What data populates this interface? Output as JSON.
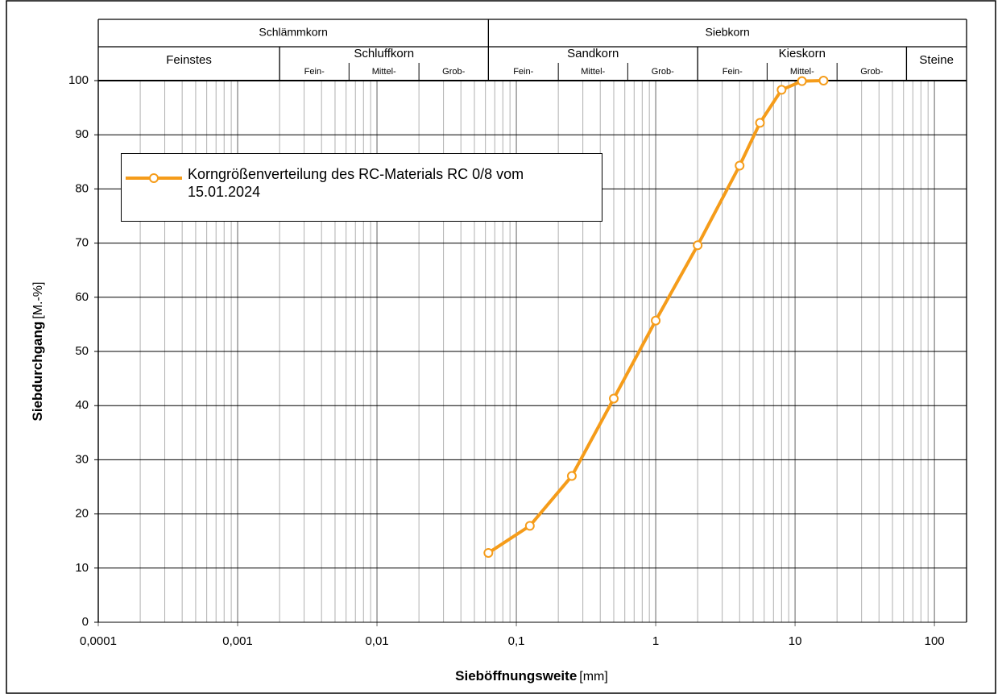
{
  "chart_data": {
    "type": "line",
    "xlabel": "Sieböffnungsweite",
    "xlabel_unit": "[mm]",
    "ylabel": "Siebdurchgang",
    "ylabel_unit": "[M.-%]",
    "log_x": true,
    "grid": true,
    "legend": "upper left",
    "xlim": [
      0.0001,
      170
    ],
    "ylim": [
      0,
      100
    ],
    "xticks": [
      {
        "value": 0.0001,
        "label": "0,0001"
      },
      {
        "value": 0.001,
        "label": "0,001"
      },
      {
        "value": 0.01,
        "label": "0,01"
      },
      {
        "value": 0.1,
        "label": "0,1"
      },
      1,
      10,
      100
    ],
    "minor_xticks": [
      0.0002,
      0.0003,
      0.0004,
      0.0005,
      0.0006,
      0.0007,
      0.0008,
      0.0009,
      0.002,
      0.003,
      0.004,
      0.005,
      0.006,
      0.007,
      0.008,
      0.009,
      0.02,
      0.03,
      0.04,
      0.05,
      0.06,
      0.07,
      0.08,
      0.09,
      0.2,
      0.3,
      0.4,
      0.5,
      0.6,
      0.7,
      0.8,
      0.9,
      2,
      3,
      4,
      5,
      6,
      7,
      8,
      9,
      20,
      30,
      40,
      50,
      60,
      70,
      80,
      90
    ],
    "yticks": [
      0,
      10,
      20,
      30,
      40,
      50,
      60,
      70,
      80,
      90,
      100
    ],
    "header": [
      {
        "label": "Schlämmkorn",
        "range": [
          0.0001,
          0.063
        ]
      },
      {
        "label": "Siebkorn",
        "range": [
          0.063,
          170
        ]
      }
    ],
    "fractions": [
      {
        "label": "Feinstes",
        "range": [
          0.0001,
          0.002
        ]
      },
      {
        "label": "Schluffkorn",
        "range": [
          0.002,
          0.063
        ],
        "parts": [
          {
            "label": "Fein-",
            "range": [
              0.002,
              0.0063
            ]
          },
          {
            "label": "Mittel-",
            "range": [
              0.0063,
              0.02
            ]
          },
          {
            "label": "Grob-",
            "range": [
              0.02,
              0.063
            ]
          }
        ]
      },
      {
        "label": "Sandkorn",
        "range": [
          0.063,
          2
        ],
        "parts": [
          {
            "label": "Fein-",
            "range": [
              0.063,
              0.2
            ]
          },
          {
            "label": "Mittel-",
            "range": [
              0.2,
              0.63
            ]
          },
          {
            "label": "Grob-",
            "range": [
              0.63,
              2
            ]
          }
        ]
      },
      {
        "label": "Kieskorn",
        "range": [
          2,
          63
        ],
        "parts": [
          {
            "label": "Fein-",
            "range": [
              2,
              6.3
            ]
          },
          {
            "label": "Mittel-",
            "range": [
              6.3,
              20
            ]
          },
          {
            "label": "Grob-",
            "range": [
              20,
              63
            ]
          }
        ]
      },
      {
        "label": "Steine",
        "range": [
          63,
          170
        ]
      }
    ],
    "series": [
      {
        "name": "Korngrößenverteilung des RC-Materials RC 0/8 vom 15.01.2024",
        "color": "#f59c1a",
        "x": [
          0.063,
          0.125,
          0.25,
          0.5,
          1,
          2,
          4,
          5.6,
          8,
          11.2,
          16
        ],
        "values": [
          12.8,
          17.8,
          27,
          41.3,
          55.7,
          69.6,
          84.3,
          92.2,
          98.3,
          99.9,
          100
        ]
      }
    ]
  }
}
